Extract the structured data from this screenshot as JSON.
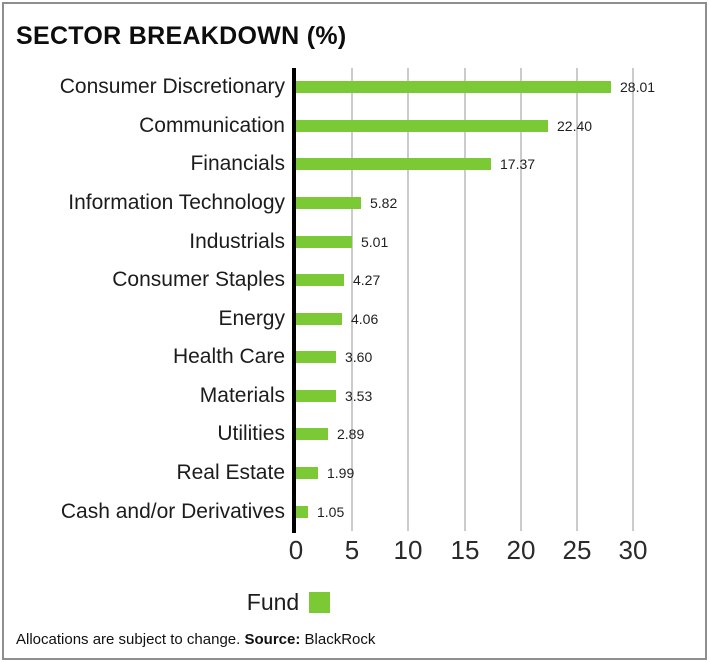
{
  "card": {
    "title": "SECTOR BREAKDOWN (%)",
    "footer": {
      "plain": "Allocations are subject to change. ",
      "bold": "Source:",
      "after": " BlackRock"
    }
  },
  "legend": {
    "label": "Fund",
    "swatch_color": "#7ac935"
  },
  "colors": {
    "bar_green": "#7ac935",
    "gridline_gray": "#cbcbcb",
    "axis_black": "#000000",
    "border_gray": "#8e8e8e"
  },
  "chart_data": {
    "type": "bar",
    "orientation": "horizontal",
    "title": "SECTOR BREAKDOWN (%)",
    "series_name": "Fund",
    "categories": [
      "Consumer Discretionary",
      "Communication",
      "Financials",
      "Information Technology",
      "Industrials",
      "Consumer Staples",
      "Energy",
      "Health Care",
      "Materials",
      "Utilities",
      "Real Estate",
      "Cash and/or Derivatives"
    ],
    "values": [
      28.01,
      22.4,
      17.37,
      5.82,
      5.01,
      4.27,
      4.06,
      3.6,
      3.53,
      2.89,
      1.99,
      1.05
    ],
    "value_label_decimals": 2,
    "xlim": [
      0,
      30
    ],
    "xticks": [
      0,
      5,
      10,
      15,
      20,
      25,
      30
    ],
    "grid": true,
    "legend_position": "bottom-center",
    "bar_color": "#7ac935"
  }
}
